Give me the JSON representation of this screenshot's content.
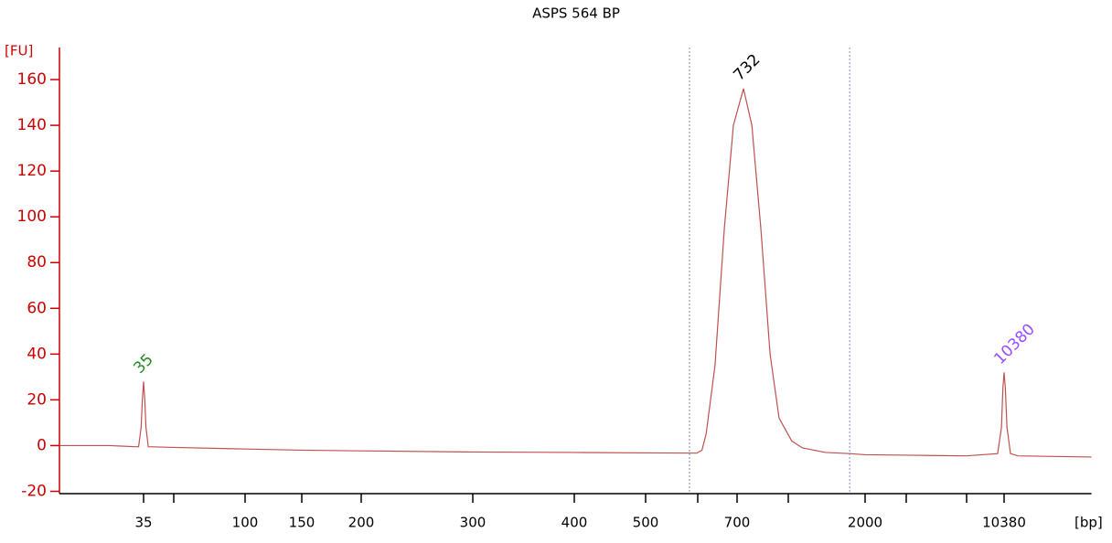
{
  "chart_data": {
    "type": "line",
    "title": "ASPS 564 BP",
    "ylabel": "[FU]",
    "xlabel": "[bp]",
    "x": [
      13,
      23.5,
      31.8,
      33,
      34,
      34.5,
      35,
      35.5,
      36,
      37,
      50,
      100,
      150,
      200,
      300,
      400,
      500,
      598,
      610,
      620,
      642,
      666,
      690,
      732,
      776,
      826,
      881,
      938,
      1032,
      1136,
      1400,
      1740,
      2000,
      3000,
      7000,
      9700,
      10100,
      10250,
      10380,
      10520,
      10700,
      11100,
      12000,
      26000
    ],
    "values": [
      0,
      0,
      -0.5,
      -0.5,
      8,
      20,
      28,
      20,
      8,
      -0.5,
      -0.8,
      -1.5,
      -2,
      -2.3,
      -2.8,
      -3,
      -3.2,
      -3.3,
      -2,
      5,
      35,
      95,
      140,
      156,
      140,
      95,
      40,
      12,
      2,
      -1,
      -3,
      -3.5,
      -4,
      -4.2,
      -4.5,
      -3.5,
      8,
      25,
      32,
      25,
      8,
      -3.5,
      -4.5,
      -5
    ],
    "color": "#c0504d",
    "xlim": [
      13,
      26000
    ],
    "xticks": [
      35,
      100,
      150,
      200,
      300,
      400,
      500,
      700,
      2000,
      10380
    ],
    "xminorticks": [
      50,
      600,
      1000,
      3000,
      7000
    ],
    "ylim": [
      -21,
      174
    ],
    "yticks": [
      -20,
      0,
      20,
      40,
      60,
      80,
      100,
      120,
      140,
      160
    ],
    "region": [
      583,
      1740
    ],
    "annotations": [
      {
        "text": "35",
        "x": 35,
        "y": 28,
        "color": "#228b22"
      },
      {
        "text": "732",
        "x": 732,
        "y": 156,
        "color": "#000000"
      },
      {
        "text": "10380",
        "x": 10380,
        "y": 32,
        "color": "#9b4dff"
      }
    ]
  }
}
